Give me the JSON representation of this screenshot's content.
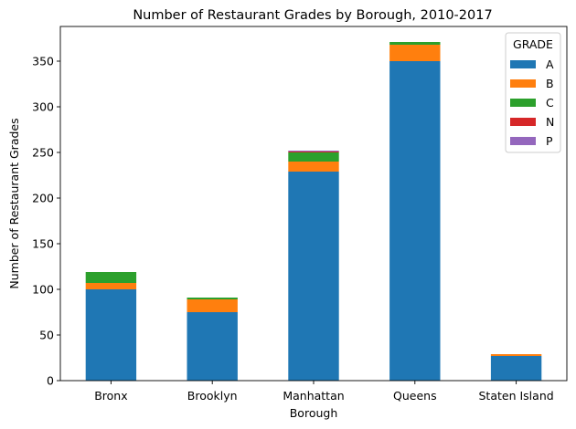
{
  "chart_data": {
    "type": "bar",
    "stacked": true,
    "title": "Number of Restaurant Grades by Borough, 2010-2017",
    "xlabel": "Borough",
    "ylabel": "Number of Restaurant Grades",
    "categories": [
      "Bronx",
      "Brooklyn",
      "Manhattan",
      "Queens",
      "Staten Island"
    ],
    "ylim": [
      0,
      388
    ],
    "yticks": [
      0,
      50,
      100,
      150,
      200,
      250,
      300,
      350
    ],
    "grid": false,
    "legend": {
      "title": "GRADE",
      "placement": "top-right"
    },
    "series": [
      {
        "name": "A",
        "color": "#1f77b4",
        "values": [
          100,
          75,
          229,
          350,
          27
        ]
      },
      {
        "name": "B",
        "color": "#ff7f0e",
        "values": [
          7,
          14,
          11,
          18,
          2
        ]
      },
      {
        "name": "C",
        "color": "#2ca02c",
        "values": [
          12,
          2,
          10,
          3,
          0
        ]
      },
      {
        "name": "N",
        "color": "#d62728",
        "values": [
          0,
          0,
          1,
          0,
          0
        ]
      },
      {
        "name": "P",
        "color": "#9467bd",
        "values": [
          0,
          0,
          1,
          0,
          0
        ]
      }
    ]
  }
}
